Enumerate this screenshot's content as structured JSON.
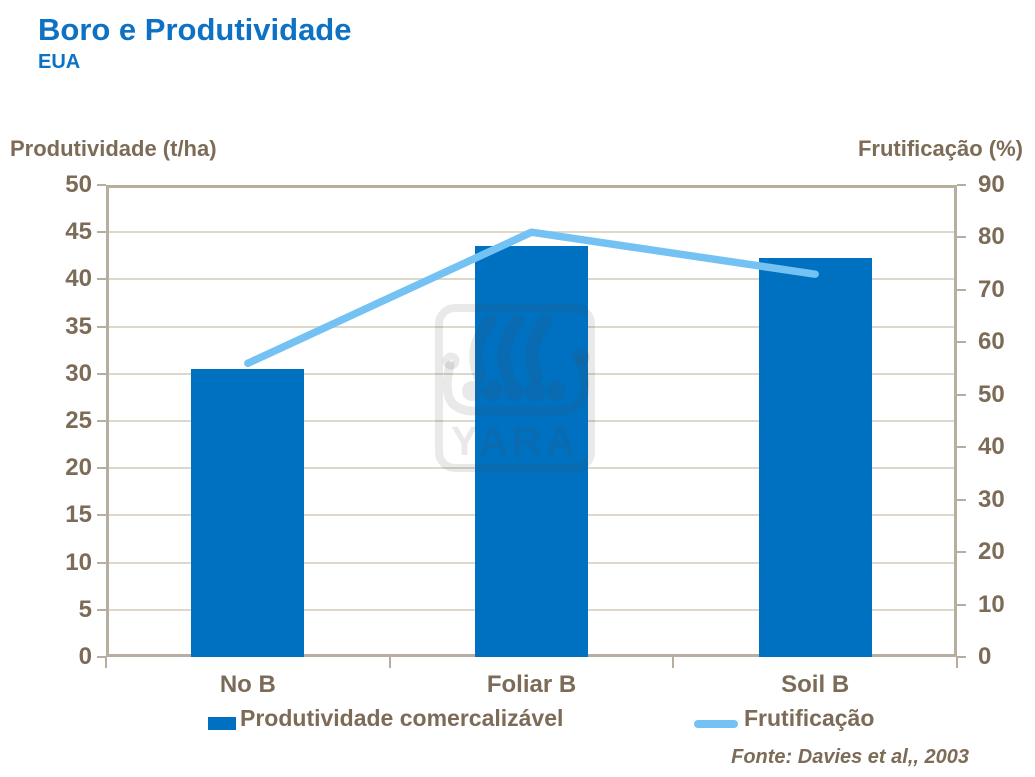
{
  "title": "Boro e Produtividade",
  "subtitle": "EUA",
  "legend": {
    "bar_label": "Produtividade comercalizável",
    "line_label": "Frutificação"
  },
  "source": "Fonte: Davies et al,, 2003",
  "watermark_text": "YARA",
  "colors": {
    "title_blue": "#0d71c4",
    "bar_blue": "#0070c0",
    "line_blue": "#74c2f3",
    "text_brown": "#7c6b57",
    "axis_line": "#b8ae9f",
    "gridline": "#ddd7cc"
  },
  "chart_data": {
    "type": "bar",
    "subtype": "bar-and-line-dual-axis",
    "categories": [
      "No B",
      "Foliar B",
      "Soil B"
    ],
    "series": [
      {
        "name": "Produtividade comercalizável",
        "type": "bar",
        "axis": "left",
        "values": [
          30.5,
          43.5,
          42.3
        ],
        "color": "#0070c0"
      },
      {
        "name": "Frutificação",
        "type": "line",
        "axis": "right",
        "values": [
          56,
          81,
          73
        ],
        "color": "#74c2f3"
      }
    ],
    "title": "Boro e Produtividade",
    "subtitle": "EUA",
    "left_axis": {
      "label": "Produtividade (t/ha)",
      "min": 0,
      "max": 50,
      "step": 5,
      "ticks": [
        0,
        5,
        10,
        15,
        20,
        25,
        30,
        35,
        40,
        45,
        50
      ]
    },
    "right_axis": {
      "label": "Frutificação (%)",
      "min": 0,
      "max": 90,
      "step": 10,
      "ticks": [
        0,
        10,
        20,
        30,
        40,
        50,
        60,
        70,
        80,
        90
      ]
    },
    "grid": true,
    "legend_position": "bottom",
    "source": "Fonte: Davies et al,, 2003"
  }
}
